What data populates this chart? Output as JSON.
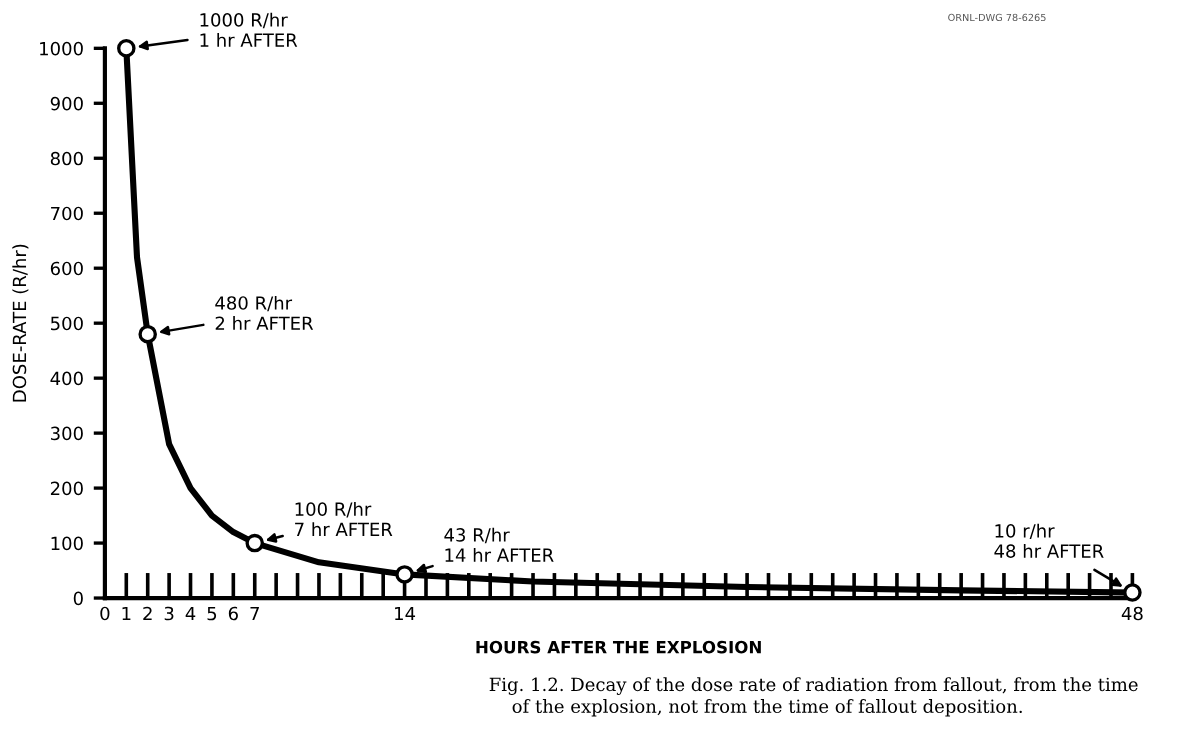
{
  "chart_data": {
    "type": "line",
    "xlabel": "HOURS AFTER THE EXPLOSION",
    "ylabel": "DOSE-RATE (R/hr)",
    "xlim": [
      0,
      48
    ],
    "ylim": [
      0,
      1000
    ],
    "xticks": [
      0,
      1,
      2,
      3,
      4,
      5,
      6,
      7,
      {
        "value": 8,
        "label": null
      },
      {
        "value": 9,
        "label": null
      },
      {
        "value": 10,
        "label": null
      },
      {
        "value": 11,
        "label": null
      },
      {
        "value": 12,
        "label": null
      },
      {
        "value": 13,
        "label": null
      },
      14,
      {
        "value": 15,
        "label": null
      },
      {
        "value": 16,
        "label": null
      },
      {
        "value": 17,
        "label": null
      },
      {
        "value": 18,
        "label": null
      },
      {
        "value": 19,
        "label": null
      },
      {
        "value": 20,
        "label": null
      },
      {
        "value": 21,
        "label": null
      },
      {
        "value": 22,
        "label": null
      },
      {
        "value": 23,
        "label": null
      },
      {
        "value": 24,
        "label": null
      },
      {
        "value": 25,
        "label": null
      },
      {
        "value": 26,
        "label": null
      },
      {
        "value": 27,
        "label": null
      },
      {
        "value": 28,
        "label": null
      },
      {
        "value": 29,
        "label": null
      },
      {
        "value": 30,
        "label": null
      },
      {
        "value": 31,
        "label": null
      },
      {
        "value": 32,
        "label": null
      },
      {
        "value": 33,
        "label": null
      },
      {
        "value": 34,
        "label": null
      },
      {
        "value": 35,
        "label": null
      },
      {
        "value": 36,
        "label": null
      },
      {
        "value": 37,
        "label": null
      },
      {
        "value": 38,
        "label": null
      },
      {
        "value": 39,
        "label": null
      },
      {
        "value": 40,
        "label": null
      },
      {
        "value": 41,
        "label": null
      },
      {
        "value": 42,
        "label": null
      },
      {
        "value": 43,
        "label": null
      },
      {
        "value": 44,
        "label": null
      },
      {
        "value": 45,
        "label": null
      },
      {
        "value": 46,
        "label": null
      },
      {
        "value": 47,
        "label": null
      },
      48
    ],
    "yticks": [
      0,
      100,
      200,
      300,
      400,
      500,
      600,
      700,
      800,
      900,
      1000
    ],
    "grid": false,
    "series": [
      {
        "color": "#000000",
        "marker": "none",
        "x": [
          1,
          1.5,
          2,
          3,
          4,
          5,
          6,
          7,
          10,
          14,
          20,
          30,
          40,
          48
        ],
        "values": [
          1000,
          620,
          480,
          280,
          200,
          150,
          120,
          100,
          65,
          43,
          30,
          20,
          14,
          10
        ]
      },
      {
        "type": "scatter",
        "color": "#000000",
        "marker": "circle",
        "x": [
          1,
          2,
          7,
          14,
          48
        ],
        "values": [
          1000,
          480,
          100,
          43,
          10
        ]
      }
    ],
    "annotations": [
      {
        "text": "1000 R/hr\n1 hr AFTER",
        "x": 1,
        "y": 1000
      },
      {
        "text": "480 R/hr\n2 hr AFTER",
        "x": 2,
        "y": 480
      },
      {
        "text": "100 R/hr\n7 hr AFTER",
        "x": 7,
        "y": 100
      },
      {
        "text": "43 R/hr\n14 hr AFTER",
        "x": 14,
        "y": 43
      },
      {
        "text": "10 r/hr\n48 hr AFTER",
        "x": 48,
        "y": 10
      },
      "ORNL-DWG 78-6265",
      "Fig. 1.2. Decay of the dose rate of radiation from fallout, from the time\n    of the explosion, not from the time of fallout deposition."
    ]
  }
}
